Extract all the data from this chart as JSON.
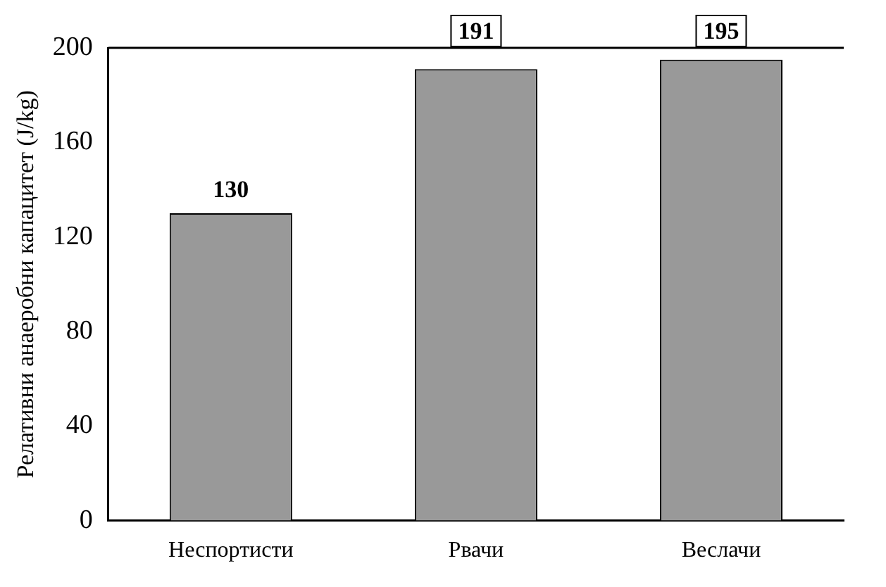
{
  "chart_data": {
    "type": "bar",
    "ylabel": "Релативни анаеробни капацитет (J/kg)",
    "categories": [
      "Неспортисти",
      "Рвачи",
      "Веслачи"
    ],
    "values": [
      130,
      191,
      195
    ],
    "color": "#999999",
    "ylim": [
      0,
      200
    ],
    "yticks": [
      0,
      40,
      80,
      120,
      160,
      200
    ],
    "grid": false,
    "legend": false,
    "data_labels": true
  }
}
